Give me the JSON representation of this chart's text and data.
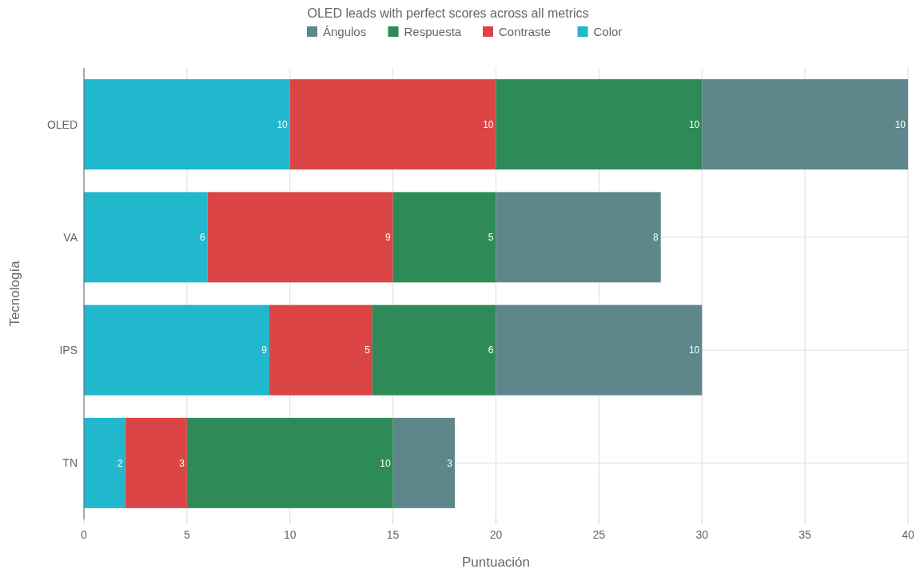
{
  "chart_data": {
    "type": "bar",
    "orientation": "horizontal",
    "stacked": true,
    "title": "OLED leads with perfect scores across all metrics",
    "xlabel": "Puntuación",
    "ylabel": "Tecnología",
    "categories": [
      "OLED",
      "VA",
      "IPS",
      "TN"
    ],
    "series": [
      {
        "name": "Color",
        "color": "#21b7cd",
        "values": [
          10,
          6,
          9,
          2
        ]
      },
      {
        "name": "Contraste",
        "color": "#db4545",
        "values": [
          10,
          9,
          5,
          3
        ]
      },
      {
        "name": "Respuesta",
        "color": "#2e8b57",
        "values": [
          10,
          5,
          6,
          10
        ]
      },
      {
        "name": "Ángulos",
        "color": "#5d878b",
        "values": [
          10,
          8,
          10,
          3
        ]
      }
    ],
    "xlim": [
      0,
      40
    ],
    "xticks": [
      0,
      5,
      10,
      15,
      20,
      25,
      30,
      35,
      40
    ],
    "grid": true,
    "legend": "top",
    "data_labels": true
  }
}
